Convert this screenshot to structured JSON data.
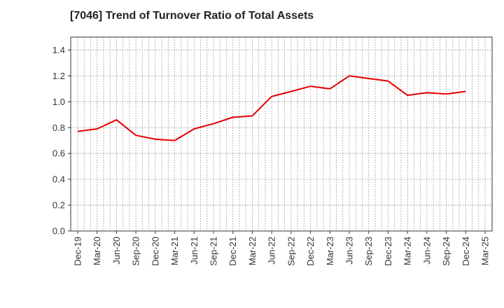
{
  "title": "[7046]  Trend of Turnover Ratio of Total Assets",
  "chart_data": {
    "type": "line",
    "title": "[7046]  Trend of Turnover Ratio of Total Assets",
    "xlabel": "",
    "ylabel": "",
    "ylim": [
      0,
      1.5
    ],
    "yticks": [
      0.0,
      0.2,
      0.4,
      0.6,
      0.8,
      1.0,
      1.2,
      1.4
    ],
    "ytick_labels": [
      "0.0",
      "0.2",
      "0.4",
      "0.6",
      "0.8",
      "1.0",
      "1.2",
      "1.4"
    ],
    "x_tick_labels": [
      "Dec-19",
      "Mar-20",
      "Jun-20",
      "Sep-20",
      "Dec-20",
      "Mar-21",
      "Jun-21",
      "Sep-21",
      "Dec-21",
      "Mar-22",
      "Jun-22",
      "Sep-22",
      "Dec-22",
      "Mar-23",
      "Jun-23",
      "Sep-23",
      "Dec-23",
      "Mar-24",
      "Jun-24",
      "Sep-24",
      "Dec-24",
      "Mar-25"
    ],
    "grid": true,
    "series": [
      {
        "color": "#e60000",
        "x": [
          "Dec-19",
          "Mar-20",
          "Jun-20",
          "Sep-20",
          "Dec-20",
          "Mar-21",
          "Jun-21",
          "Sep-21",
          "Dec-21",
          "Mar-22",
          "Jun-22",
          "Sep-22",
          "Dec-22",
          "Mar-23",
          "Jun-23",
          "Sep-23",
          "Dec-23",
          "Mar-24",
          "Jun-24",
          "Sep-24",
          "Dec-24"
        ],
        "values": [
          0.77,
          0.79,
          0.86,
          0.74,
          0.71,
          0.7,
          0.79,
          0.83,
          0.88,
          0.89,
          1.04,
          1.08,
          1.12,
          1.1,
          1.2,
          1.18,
          1.16,
          1.05,
          1.07,
          1.06,
          1.08
        ]
      }
    ]
  }
}
